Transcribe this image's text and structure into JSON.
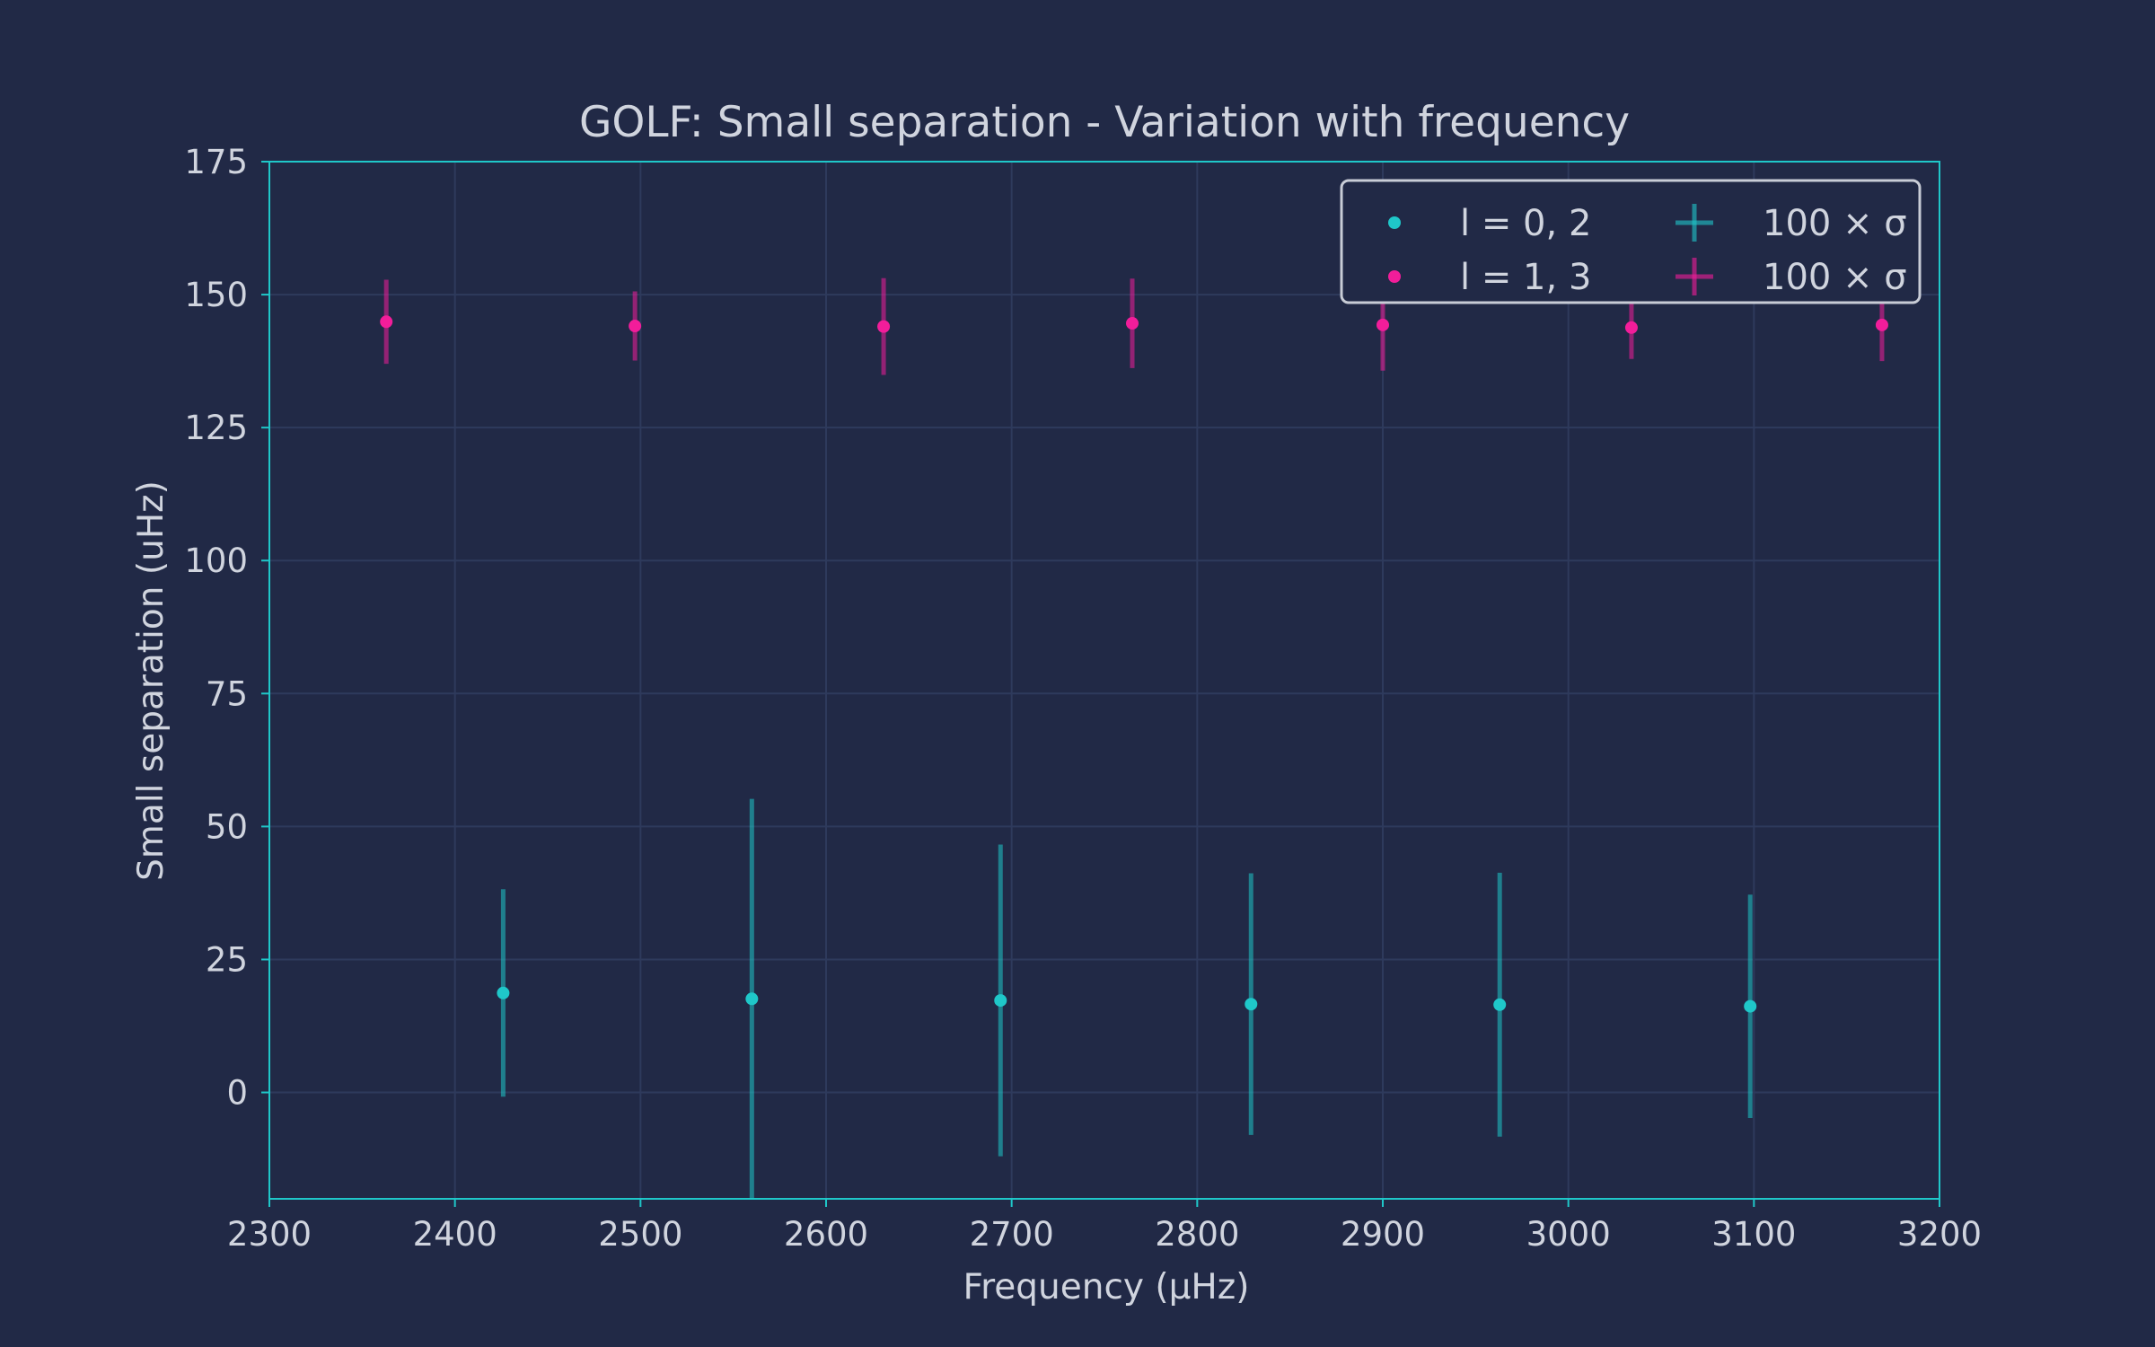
{
  "chart_data": {
    "type": "scatter",
    "title": "GOLF: Small separation - Variation with frequency",
    "xlabel": "Frequency (μHz)",
    "ylabel": "Small separation (uHz)",
    "xlim": [
      2300,
      3200
    ],
    "ylim": [
      -20,
      175
    ],
    "xticks": [
      "2300",
      "2400",
      "2500",
      "2600",
      "2700",
      "2800",
      "2900",
      "3000",
      "3100",
      "3200"
    ],
    "yticks": [
      "0",
      "25",
      "50",
      "75",
      "100",
      "125",
      "150",
      "175"
    ],
    "grid": true,
    "legend_position": "top-right",
    "series": [
      {
        "name": "l = 0, 2",
        "color": "#1fc7c9",
        "x": [
          2426,
          2560,
          2694,
          2829,
          2963,
          3098
        ],
        "y": [
          18.7,
          17.6,
          17.3,
          16.6,
          16.5,
          16.2
        ],
        "yerr": [
          19.5,
          37.6,
          29.3,
          24.6,
          24.8,
          21.0
        ]
      },
      {
        "name": "l = 1, 3",
        "color": "#f21d9a",
        "x": [
          2363,
          2497,
          2631,
          2765,
          2900,
          3034,
          3169
        ],
        "y": [
          144.9,
          144.1,
          144.0,
          144.6,
          144.3,
          143.8,
          144.3
        ],
        "yerr": [
          7.9,
          6.5,
          9.1,
          8.4,
          8.6,
          5.9,
          6.8
        ]
      }
    ],
    "errorbar_legend": [
      {
        "label": "100 × σ",
        "color": "#1fc7c9"
      },
      {
        "label": "100 × σ",
        "color": "#f21d9a"
      }
    ],
    "colors": {
      "background": "#212946",
      "grid": "#2e3a5c",
      "frame": "#1fc7c9",
      "text": "#d0d4de"
    }
  }
}
